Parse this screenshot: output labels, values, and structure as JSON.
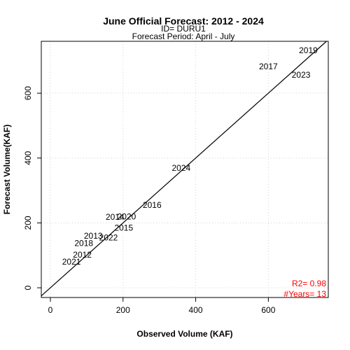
{
  "chart_data": {
    "type": "scatter",
    "title": "June Official Forecast: 2012 - 2024",
    "subtitle_id": "ID= DURU1",
    "subtitle_period": "Forecast Period:  April - July",
    "xlabel": "Observed Volume (KAF)",
    "ylabel": "Forecast Volume(KAF)",
    "xlim": [
      -25,
      765
    ],
    "ylim": [
      -30,
      760
    ],
    "xticks": [
      0,
      200,
      400,
      600
    ],
    "yticks": [
      0,
      200,
      400,
      600
    ],
    "grid": true,
    "reference_line": "1:1",
    "points": [
      {
        "label": "2012",
        "x": 88,
        "y": 100
      },
      {
        "label": "2013",
        "x": 118,
        "y": 158
      },
      {
        "label": "2014",
        "x": 178,
        "y": 216
      },
      {
        "label": "2015",
        "x": 202,
        "y": 183
      },
      {
        "label": "2016",
        "x": 280,
        "y": 253
      },
      {
        "label": "2017",
        "x": 600,
        "y": 680
      },
      {
        "label": "2018",
        "x": 92,
        "y": 135
      },
      {
        "label": "2019",
        "x": 710,
        "y": 730
      },
      {
        "label": "2020",
        "x": 210,
        "y": 218
      },
      {
        "label": "2021",
        "x": 58,
        "y": 78
      },
      {
        "label": "2022",
        "x": 160,
        "y": 153
      },
      {
        "label": "2023",
        "x": 690,
        "y": 655
      },
      {
        "label": "2024",
        "x": 360,
        "y": 368
      }
    ],
    "stats": {
      "r2": "R2=  0.98",
      "years": "#Years=  13"
    }
  }
}
